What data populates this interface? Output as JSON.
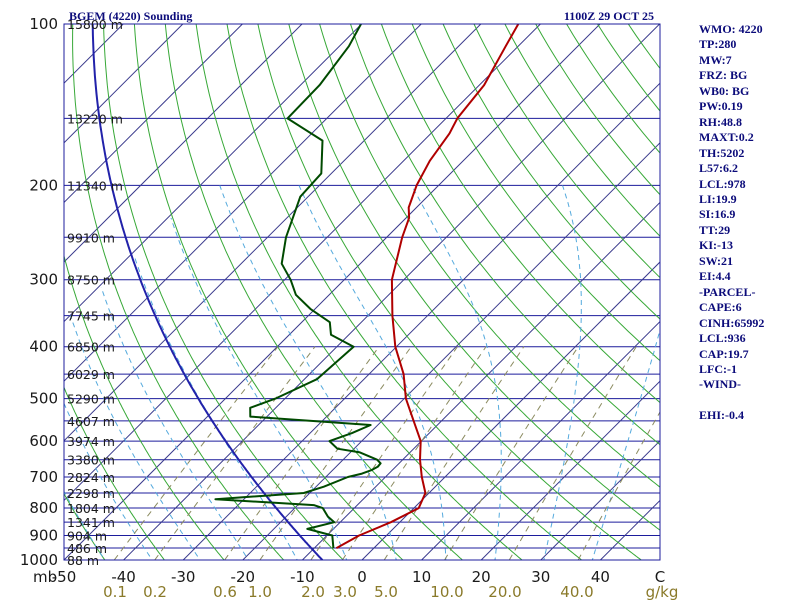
{
  "chart_data": {
    "type": "line",
    "title": "BGEM (4220) Sounding",
    "valid_time": "1100Z 29 OCT 25",
    "x_axis": {
      "label": "C",
      "range": [
        -50,
        50
      ],
      "ticks": [
        -50,
        -40,
        -30,
        -20,
        -10,
        0,
        10,
        20,
        30,
        40
      ]
    },
    "y_axis": {
      "label": "mb",
      "range": [
        1000,
        100
      ],
      "scale": "log-pressure",
      "ticks": [
        100,
        200,
        300,
        400,
        500,
        600,
        700,
        800,
        900,
        1000
      ]
    },
    "skew_degrees": 45,
    "height_labels": [
      {
        "p": 100,
        "label": "15800 m"
      },
      {
        "p": 150,
        "label": "13220 m"
      },
      {
        "p": 200,
        "label": "11340 m"
      },
      {
        "p": 250,
        "label": "9910 m"
      },
      {
        "p": 300,
        "label": "8750 m"
      },
      {
        "p": 350,
        "label": "7745 m"
      },
      {
        "p": 400,
        "label": "6850 m"
      },
      {
        "p": 450,
        "label": "6029 m"
      },
      {
        "p": 500,
        "label": "5290 m"
      },
      {
        "p": 550,
        "label": "4607 m"
      },
      {
        "p": 600,
        "label": "3974 m"
      },
      {
        "p": 650,
        "label": "3380 m"
      },
      {
        "p": 700,
        "label": "2824 m"
      },
      {
        "p": 750,
        "label": "2298 m"
      },
      {
        "p": 800,
        "label": "1804 m"
      },
      {
        "p": 850,
        "label": "1341 m"
      },
      {
        "p": 900,
        "label": "904 m"
      },
      {
        "p": 950,
        "label": "486 m"
      },
      {
        "p": 1000,
        "label": "88 m"
      }
    ],
    "mixing_ratio_labels": [
      "0.1",
      "0.2",
      "0.6",
      "1.0",
      "2.0",
      "3.0",
      "5.0",
      "10.0",
      "20.0",
      "40.0",
      "g/kg"
    ],
    "mixing_ratio_values": [
      0.1,
      0.2,
      0.6,
      1.0,
      2.0,
      3.0,
      5.0,
      10.0,
      20.0,
      40.0
    ],
    "series": [
      {
        "name": "Temperature",
        "color": "#b00000",
        "points": [
          [
            950,
            -6.3
          ],
          [
            900,
            -4.6
          ],
          [
            850,
            -1.5
          ],
          [
            800,
            0.8
          ],
          [
            750,
            -0.6
          ],
          [
            700,
            -3.9
          ],
          [
            650,
            -7.1
          ],
          [
            600,
            -10.1
          ],
          [
            550,
            -14.7
          ],
          [
            500,
            -19.7
          ],
          [
            450,
            -24.2
          ],
          [
            400,
            -30.2
          ],
          [
            350,
            -35.9
          ],
          [
            300,
            -42.0
          ],
          [
            250,
            -47.4
          ],
          [
            230,
            -49.5
          ],
          [
            220,
            -51.3
          ],
          [
            200,
            -53.7
          ],
          [
            180,
            -55.6
          ],
          [
            160,
            -56.9
          ],
          [
            150,
            -58.1
          ],
          [
            130,
            -59.2
          ],
          [
            110,
            -62.1
          ],
          [
            100,
            -63.7
          ]
        ]
      },
      {
        "name": "Dewpoint",
        "color": "#004a00",
        "points": [
          [
            950,
            -6.8
          ],
          [
            900,
            -9.1
          ],
          [
            875,
            -14.4
          ],
          [
            850,
            -11.0
          ],
          [
            830,
            -13.0
          ],
          [
            800,
            -15.3
          ],
          [
            790,
            -17.3
          ],
          [
            770,
            -34.8
          ],
          [
            750,
            -21.0
          ],
          [
            730,
            -18.7
          ],
          [
            700,
            -16.3
          ],
          [
            690,
            -14.5
          ],
          [
            680,
            -13.5
          ],
          [
            670,
            -13.0
          ],
          [
            660,
            -13.1
          ],
          [
            650,
            -14.3
          ],
          [
            630,
            -18.4
          ],
          [
            620,
            -22.8
          ],
          [
            600,
            -25.4
          ],
          [
            580,
            -23.0
          ],
          [
            560,
            -21.2
          ],
          [
            540,
            -42.8
          ],
          [
            520,
            -44.3
          ],
          [
            500,
            -41.6
          ],
          [
            460,
            -37.9
          ],
          [
            400,
            -37.2
          ],
          [
            380,
            -43.0
          ],
          [
            360,
            -45.3
          ],
          [
            340,
            -50.8
          ],
          [
            320,
            -55.6
          ],
          [
            300,
            -59.0
          ],
          [
            280,
            -63.2
          ],
          [
            250,
            -66.9
          ],
          [
            210,
            -71.3
          ],
          [
            190,
            -71.7
          ],
          [
            165,
            -77.0
          ],
          [
            150,
            -86.6
          ],
          [
            130,
            -86.8
          ],
          [
            110,
            -88.4
          ],
          [
            100,
            -90.1
          ]
        ]
      }
    ]
  },
  "stats": [
    "WMO: 4220",
    "TP:280",
    "MW:7",
    "FRZ: BG",
    "WB0: BG",
    "PW:0.19",
    "RH:48.8",
    "MAXT:0.2",
    "TH:5202",
    "L57:6.2",
    "LCL:978",
    "LI:19.9",
    "SI:16.9",
    "TT:29",
    "KI:-13",
    "SW:21",
    "EI:4.4",
    "-PARCEL-",
    "CAPE:6",
    "CINH:65992",
    "LCL:936",
    "CAP:19.7",
    "LFC:-1",
    "-WIND-",
    "",
    "EHI:-0.4"
  ],
  "colors": {
    "isobar": "#1c1c9c",
    "isotherm": "#3a3a8c",
    "dry_adiabat": "#37a837",
    "moist_adiabat": "#55aadd",
    "mixing_ratio": "#8b8b60",
    "moist_dry_line": "#2222aa",
    "text": "#0b0b7a"
  }
}
